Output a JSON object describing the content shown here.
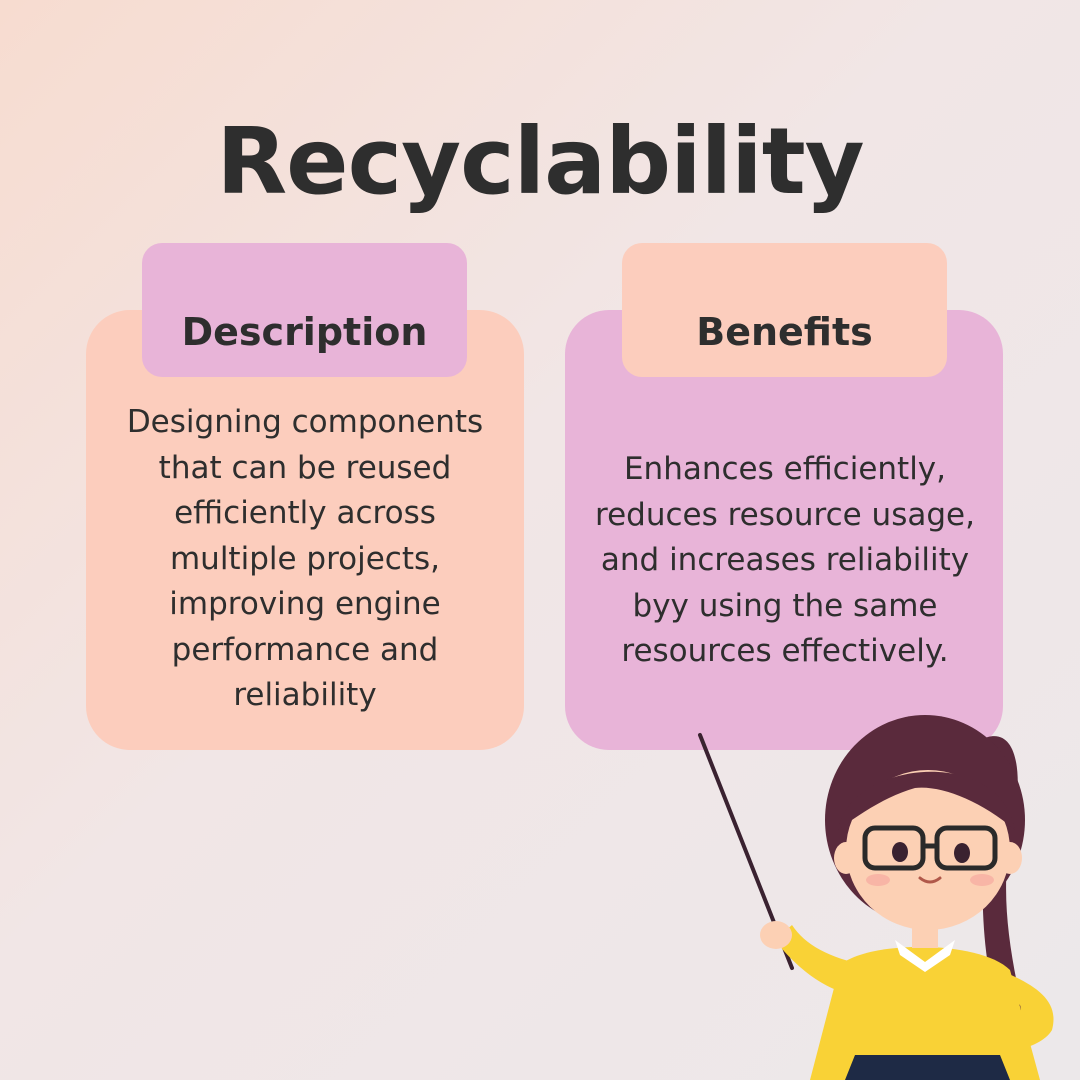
{
  "title": "Recyclability",
  "description": {
    "heading": "Description",
    "text": "Designing components\nthat can be reused\nefficiently across\nmultiple projects,\nimproving engine\nperformance and\nreliability"
  },
  "benefits": {
    "heading": "Benefits",
    "text": "Enhances efficiently,\nreduces  resource usage,\nand increases reliability\nbyy using the same\nresources effectively."
  },
  "colors": {
    "peach": "#fccdbd",
    "pink": "#e8b4d8",
    "text": "#2e2e2e"
  }
}
